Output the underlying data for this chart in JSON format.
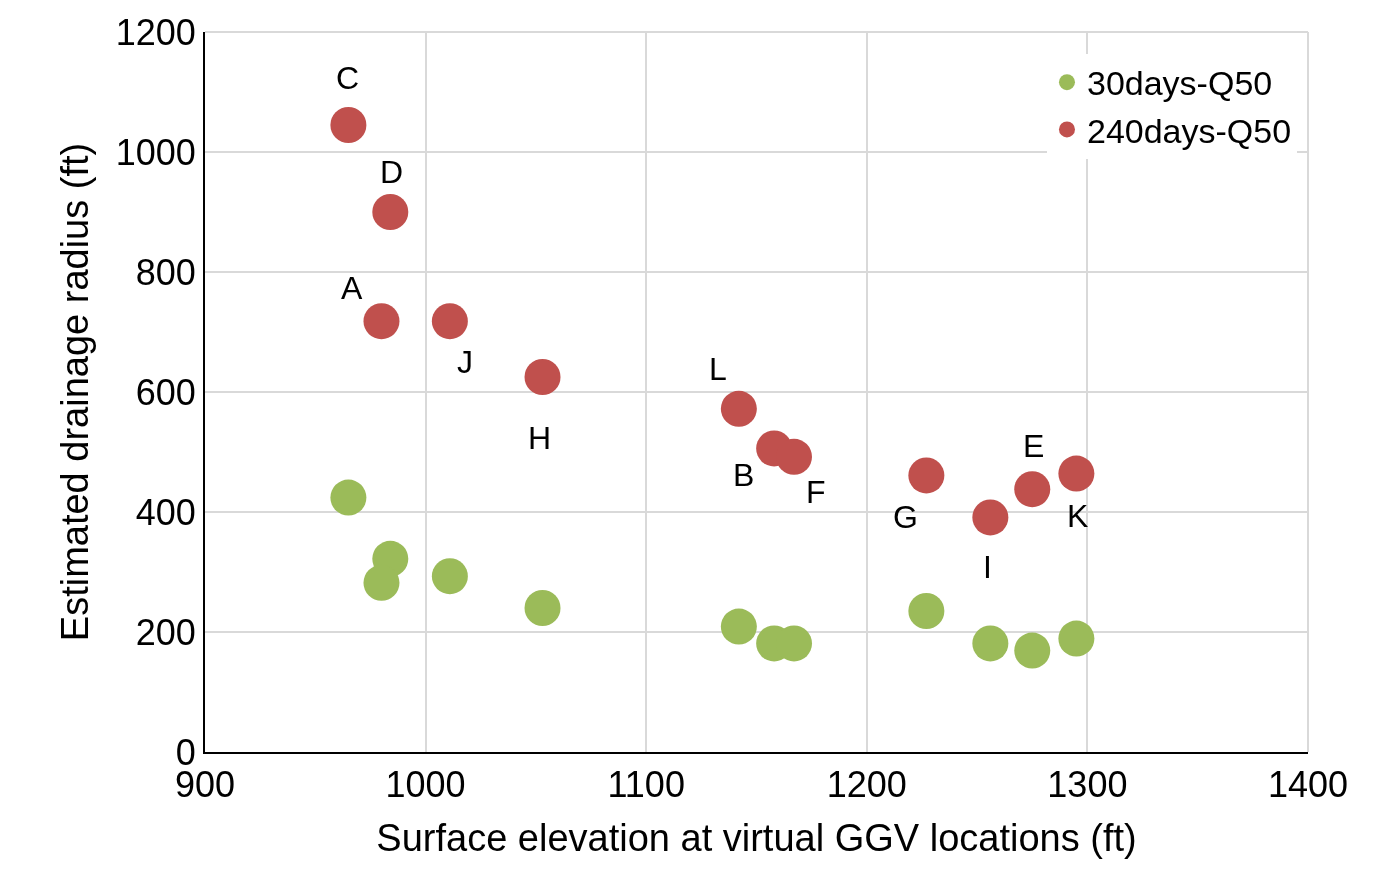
{
  "chart_data": {
    "type": "scatter",
    "xlabel": "Surface elevation at virtual GGV locations (ft)",
    "ylabel": "Estimated drainage radius (ft)",
    "xlim": [
      900,
      1400
    ],
    "xticks": [
      900,
      1000,
      1100,
      1200,
      1300,
      1400
    ],
    "ylim": [
      0,
      1200
    ],
    "yticks": [
      0,
      200,
      400,
      600,
      800,
      1000,
      1200
    ],
    "grid": true,
    "legend": "top right",
    "marker": "circle",
    "series": [
      {
        "name": "30days-Q50",
        "color": "#9bbb59",
        "x": [
          965,
          984,
          980,
          1011,
          1053,
          1142,
          1158,
          1167,
          1227,
          1256,
          1275,
          1295
        ],
        "values": [
          424,
          322,
          282,
          293,
          240,
          209,
          181,
          181,
          235,
          181,
          169,
          189
        ]
      },
      {
        "name": "240days-Q50",
        "color": "#c0504d",
        "x": [
          965,
          984,
          980,
          1011,
          1053,
          1142,
          1158,
          1167,
          1227,
          1256,
          1275,
          1295
        ],
        "values": [
          1045,
          900,
          718,
          718,
          625,
          572,
          506,
          492,
          461,
          391,
          438,
          464
        ]
      }
    ],
    "annotations": [
      {
        "text": "C",
        "x": 965,
        "y": 1045
      },
      {
        "text": "D",
        "x": 984,
        "y": 900
      },
      {
        "text": "A",
        "x": 980,
        "y": 718
      },
      {
        "text": "J",
        "x": 1011,
        "y": 718
      },
      {
        "text": "H",
        "x": 1053,
        "y": 625
      },
      {
        "text": "L",
        "x": 1142,
        "y": 572
      },
      {
        "text": "B",
        "x": 1158,
        "y": 506
      },
      {
        "text": "F",
        "x": 1167,
        "y": 492
      },
      {
        "text": "G",
        "x": 1227,
        "y": 461
      },
      {
        "text": "I",
        "x": 1256,
        "y": 391
      },
      {
        "text": "E",
        "x": 1275,
        "y": 438
      },
      {
        "text": "K",
        "x": 1295,
        "y": 464
      }
    ]
  }
}
